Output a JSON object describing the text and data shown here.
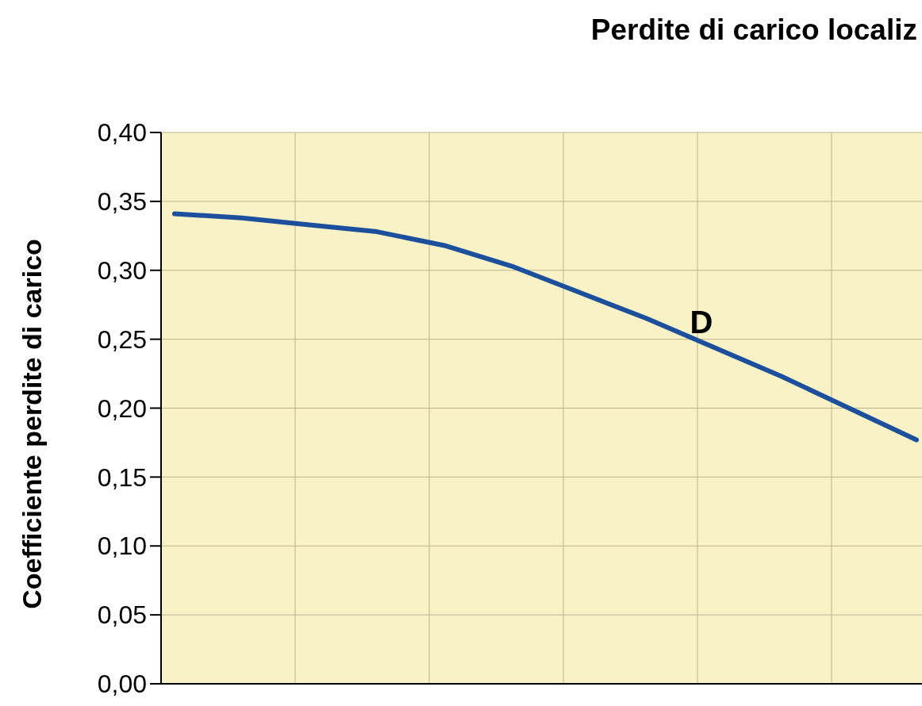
{
  "chart_data": {
    "type": "line",
    "title": "Perdite di carico localiz",
    "ylabel": "Coefficiente perdite di carico",
    "categories": [
      null,
      null,
      null,
      null,
      null,
      null,
      null,
      null,
      null,
      null,
      null,
      null
    ],
    "series": [
      {
        "color": "#1c4f9c",
        "values": [
          0.341,
          0.338,
          0.333,
          0.328,
          0.318,
          0.303,
          0.284,
          0.265,
          0.244,
          0.223,
          0.2,
          0.177
        ]
      }
    ],
    "ylim": [
      0,
      0.4
    ],
    "yticks": [
      {
        "value": 0,
        "label": "0,00"
      },
      {
        "value": 0.05,
        "label": "0,05"
      },
      {
        "value": 0.1,
        "label": "0,10"
      },
      {
        "value": 0.15,
        "label": "0,15"
      },
      {
        "value": 0.2,
        "label": "0,20"
      },
      {
        "value": 0.25,
        "label": "0,25"
      },
      {
        "value": 0.3,
        "label": "0,30"
      },
      {
        "value": 0.35,
        "label": "0,35"
      },
      {
        "value": 0.4,
        "label": "0,40"
      }
    ],
    "grid": true,
    "tick_labels": "y",
    "marker": "none",
    "line_style": "solid",
    "annotations": [
      "D"
    ]
  }
}
